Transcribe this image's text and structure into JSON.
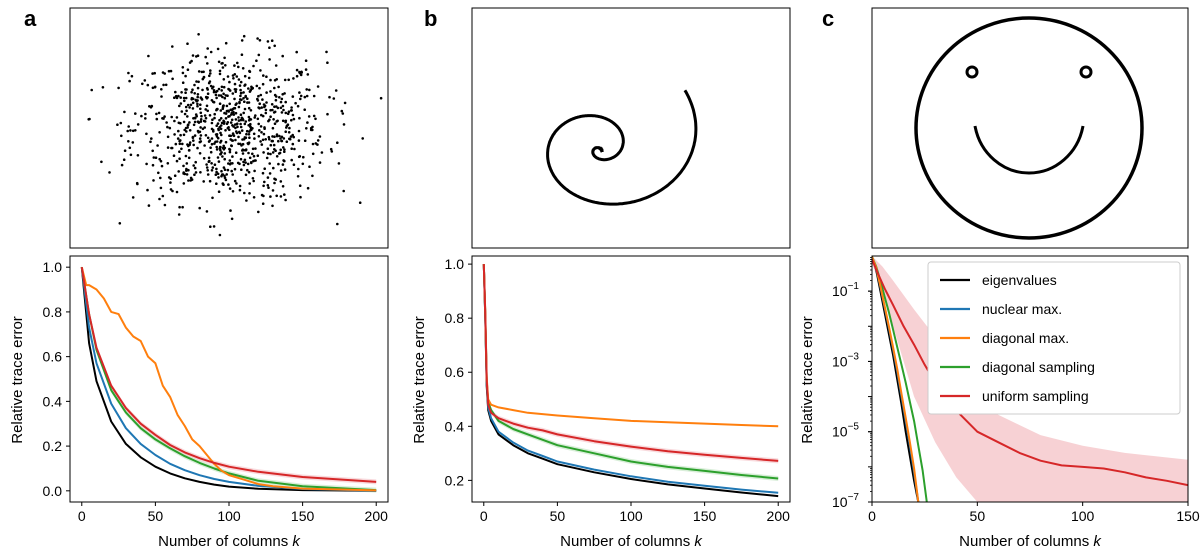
{
  "panel_letters": [
    "a",
    "b",
    "c"
  ],
  "colors": {
    "eigenvalues": "#000000",
    "nuclear": "#1f77b4",
    "diagonal_max": "#ff7f0e",
    "diagonal_sampling": "#2ca02c",
    "uniform": "#d62728",
    "uniform_band": "#f4c2c6"
  },
  "chart_data": [
    {
      "panel": "a-top",
      "type": "scatter",
      "description_shape": "gaussian point cloud",
      "points": 900,
      "xlim": [
        -3.3,
        3.3
      ],
      "ylim": [
        -3.2,
        3.2
      ]
    },
    {
      "panel": "b-top",
      "type": "line",
      "description_shape": "spiral",
      "xlim": [
        -1.0,
        1.0
      ],
      "ylim": [
        -1.0,
        1.0
      ]
    },
    {
      "panel": "c-top",
      "type": "line",
      "description_shape": "smiley face",
      "xlim": [
        -1.2,
        1.2
      ],
      "ylim": [
        -1.2,
        1.2
      ]
    },
    {
      "panel": "a-bottom",
      "type": "line",
      "xlabel": "Number of columns k",
      "ylabel": "Relative trace error",
      "xlim": [
        -8,
        208
      ],
      "ylim": [
        -0.05,
        1.05
      ],
      "xticks": [
        "0",
        "50",
        "100",
        "150",
        "200"
      ],
      "yticks": [
        "0.0",
        "0.2",
        "0.4",
        "0.6",
        "0.8",
        "1.0"
      ],
      "series": [
        {
          "name": "eigenvalues",
          "x": [
            0,
            5,
            10,
            20,
            30,
            40,
            50,
            60,
            70,
            80,
            90,
            100,
            120,
            150,
            200
          ],
          "values": [
            1.0,
            0.66,
            0.49,
            0.31,
            0.21,
            0.15,
            0.108,
            0.078,
            0.056,
            0.04,
            0.028,
            0.019,
            0.009,
            0.003,
            0.0
          ]
        },
        {
          "name": "nuclear max.",
          "x": [
            0,
            5,
            10,
            20,
            30,
            40,
            50,
            60,
            70,
            80,
            90,
            100,
            120,
            150,
            200
          ],
          "values": [
            1.0,
            0.73,
            0.57,
            0.39,
            0.28,
            0.21,
            0.16,
            0.121,
            0.092,
            0.07,
            0.053,
            0.04,
            0.022,
            0.008,
            0.001
          ]
        },
        {
          "name": "diagonal max.",
          "x": [
            0,
            3,
            5,
            10,
            15,
            20,
            25,
            30,
            35,
            40,
            45,
            50,
            55,
            60,
            65,
            70,
            75,
            80,
            85,
            90,
            95,
            100,
            110,
            120,
            130,
            150,
            200
          ],
          "values": [
            1.0,
            0.92,
            0.92,
            0.9,
            0.86,
            0.8,
            0.79,
            0.73,
            0.69,
            0.67,
            0.6,
            0.57,
            0.47,
            0.42,
            0.34,
            0.29,
            0.23,
            0.2,
            0.16,
            0.12,
            0.09,
            0.07,
            0.05,
            0.03,
            0.02,
            0.01,
            0.002
          ]
        },
        {
          "name": "diagonal sampling",
          "x": [
            0,
            5,
            10,
            20,
            30,
            40,
            50,
            60,
            70,
            80,
            90,
            100,
            120,
            150,
            200
          ],
          "values": [
            1.0,
            0.79,
            0.63,
            0.45,
            0.35,
            0.28,
            0.23,
            0.19,
            0.155,
            0.125,
            0.1,
            0.078,
            0.045,
            0.02,
            0.003
          ]
        },
        {
          "name": "uniform sampling",
          "x": [
            0,
            5,
            10,
            20,
            30,
            40,
            50,
            60,
            70,
            80,
            90,
            100,
            120,
            150,
            200
          ],
          "values": [
            1.0,
            0.79,
            0.64,
            0.47,
            0.37,
            0.3,
            0.25,
            0.205,
            0.172,
            0.146,
            0.125,
            0.108,
            0.085,
            0.062,
            0.04
          ]
        }
      ]
    },
    {
      "panel": "b-bottom",
      "type": "line",
      "xlabel": "Number of columns k",
      "ylabel": "Relative trace error",
      "xlim": [
        -8,
        208
      ],
      "ylim": [
        0.12,
        1.03
      ],
      "xticks": [
        "0",
        "50",
        "100",
        "150",
        "200"
      ],
      "yticks": [
        "0.2",
        "0.4",
        "0.6",
        "0.8",
        "1.0"
      ],
      "series": [
        {
          "name": "eigenvalues",
          "x": [
            0,
            1,
            2,
            3,
            5,
            10,
            20,
            30,
            40,
            50,
            75,
            100,
            125,
            150,
            175,
            200
          ],
          "values": [
            1.0,
            0.8,
            0.55,
            0.46,
            0.42,
            0.37,
            0.33,
            0.3,
            0.28,
            0.26,
            0.23,
            0.205,
            0.185,
            0.17,
            0.155,
            0.142
          ]
        },
        {
          "name": "nuclear max.",
          "x": [
            0,
            1,
            2,
            3,
            5,
            10,
            20,
            30,
            40,
            50,
            75,
            100,
            125,
            150,
            175,
            200
          ],
          "values": [
            1.0,
            0.8,
            0.56,
            0.47,
            0.43,
            0.38,
            0.34,
            0.31,
            0.29,
            0.27,
            0.24,
            0.215,
            0.195,
            0.18,
            0.166,
            0.154
          ]
        },
        {
          "name": "diagonal max.",
          "x": [
            0,
            1,
            2,
            3,
            5,
            10,
            20,
            30,
            50,
            75,
            100,
            125,
            150,
            175,
            200
          ],
          "values": [
            1.0,
            0.82,
            0.58,
            0.5,
            0.48,
            0.47,
            0.46,
            0.45,
            0.44,
            0.43,
            0.42,
            0.415,
            0.41,
            0.405,
            0.4
          ]
        },
        {
          "name": "diagonal sampling",
          "x": [
            0,
            1,
            2,
            3,
            5,
            10,
            20,
            30,
            40,
            50,
            75,
            100,
            125,
            150,
            175,
            200
          ],
          "values": [
            1.0,
            0.81,
            0.57,
            0.49,
            0.46,
            0.42,
            0.39,
            0.37,
            0.35,
            0.33,
            0.3,
            0.27,
            0.25,
            0.235,
            0.22,
            0.207
          ]
        },
        {
          "name": "uniform sampling",
          "x": [
            0,
            1,
            2,
            3,
            5,
            10,
            20,
            30,
            40,
            50,
            75,
            100,
            125,
            150,
            175,
            200
          ],
          "values": [
            1.0,
            0.81,
            0.57,
            0.48,
            0.45,
            0.43,
            0.41,
            0.395,
            0.385,
            0.37,
            0.345,
            0.325,
            0.308,
            0.295,
            0.283,
            0.272
          ]
        }
      ]
    },
    {
      "panel": "c-bottom",
      "type": "line",
      "xlabel": "Number of columns k",
      "ylabel": "Relative trace error",
      "yscale": "log",
      "xlim": [
        0,
        150
      ],
      "ylim": [
        1e-07,
        1
      ],
      "xticks": [
        "0",
        "50",
        "100",
        "150"
      ],
      "yticks": [
        {
          "base": "10",
          "exp": "−1",
          "value": 0.1
        },
        {
          "base": "10",
          "exp": "−3",
          "value": 0.001
        },
        {
          "base": "10",
          "exp": "−5",
          "value": 1e-05
        },
        {
          "base": "10",
          "exp": "−7",
          "value": 1e-07
        }
      ],
      "legend_position": "top-right",
      "series": [
        {
          "name": "eigenvalues",
          "x": [
            0,
            2,
            4,
            6,
            8,
            10,
            12,
            14,
            16,
            18,
            20,
            22
          ],
          "values": [
            0.95,
            0.4,
            0.1,
            0.025,
            0.006,
            0.0015,
            0.0003,
            6e-05,
            1e-05,
            2e-06,
            4e-07,
            1e-07
          ]
        },
        {
          "name": "nuclear max.",
          "x": [
            0,
            2,
            4,
            6,
            8,
            10,
            12,
            14,
            16,
            18,
            20,
            22
          ],
          "values": [
            0.95,
            0.45,
            0.13,
            0.035,
            0.009,
            0.0022,
            0.0005,
            0.0001,
            2e-05,
            4e-06,
            7e-07,
            1e-07
          ]
        },
        {
          "name": "diagonal max.",
          "x": [
            0,
            2,
            4,
            6,
            8,
            10,
            12,
            14,
            16,
            18,
            20,
            22
          ],
          "values": [
            0.95,
            0.46,
            0.14,
            0.038,
            0.01,
            0.0025,
            0.0006,
            0.00012,
            2.5e-05,
            5e-06,
            9e-07,
            1e-07
          ]
        },
        {
          "name": "diagonal sampling",
          "x": [
            0,
            2,
            4,
            6,
            8,
            10,
            12,
            14,
            16,
            18,
            20,
            22,
            24,
            26
          ],
          "values": [
            0.95,
            0.5,
            0.2,
            0.07,
            0.025,
            0.008,
            0.0025,
            0.0008,
            0.00025,
            7e-05,
            2e-05,
            4e-06,
            8e-07,
            1e-07
          ]
        },
        {
          "name": "uniform sampling",
          "x": [
            0,
            3,
            6,
            10,
            15,
            20,
            25,
            30,
            35,
            40,
            50,
            60,
            70,
            80,
            90,
            100,
            110,
            120,
            130,
            140,
            150
          ],
          "values": [
            0.8,
            0.3,
            0.12,
            0.04,
            0.01,
            0.003,
            0.0008,
            0.00025,
            0.0001,
            4e-05,
            1e-05,
            5e-06,
            2.5e-06,
            1.5e-06,
            1.1e-06,
            1e-06,
            9e-07,
            7e-07,
            5e-07,
            4e-07,
            3e-07
          ]
        },
        {
          "name": "uniform sampling band upper",
          "x": [
            0,
            5,
            10,
            20,
            30,
            40,
            50,
            60,
            80,
            100,
            120,
            150
          ],
          "values": [
            1.0,
            0.5,
            0.2,
            0.03,
            0.005,
            0.0008,
            0.0001,
            3e-05,
            8e-06,
            4e-06,
            2.5e-06,
            1.6e-06
          ]
        },
        {
          "name": "uniform sampling band lower",
          "x": [
            0,
            5,
            10,
            15,
            20,
            30,
            40,
            50,
            60,
            80,
            100,
            150
          ],
          "values": [
            0.6,
            0.1,
            0.01,
            0.001,
            0.0001,
            5e-06,
            5e-07,
            1e-07,
            1e-07,
            1e-07,
            1e-07,
            1e-07
          ]
        }
      ]
    }
  ]
}
